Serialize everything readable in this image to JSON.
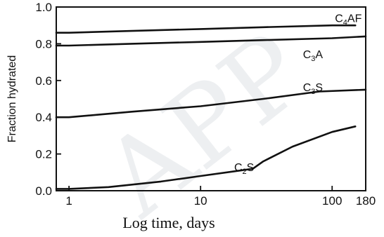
{
  "chart_data": {
    "type": "line",
    "xlabel": "Log time, days",
    "ylabel": "Fraction hydrated",
    "xscale": "log",
    "xlim": [
      0.8,
      180
    ],
    "ylim": [
      0.0,
      1.0
    ],
    "x_ticks": [
      {
        "value": 1,
        "label": "1"
      },
      {
        "value": 10,
        "label": "10"
      },
      {
        "value": 100,
        "label": "100"
      },
      {
        "value": 180,
        "label": "180"
      }
    ],
    "y_ticks": [
      {
        "value": 0.0,
        "label": "0.0"
      },
      {
        "value": 0.2,
        "label": "0.2"
      },
      {
        "value": 0.4,
        "label": "0.4"
      },
      {
        "value": 0.6,
        "label": "0.6"
      },
      {
        "value": 0.8,
        "label": "0.8"
      },
      {
        "value": 1.0,
        "label": "1.0"
      }
    ],
    "series": [
      {
        "name": "C4AF",
        "label_parts": [
          {
            "t": "C",
            "sub": false
          },
          {
            "t": "4",
            "sub": true
          },
          {
            "t": "AF",
            "sub": false
          }
        ],
        "label_at": [
          105,
          0.94
        ],
        "x": [
          0.8,
          1,
          3,
          10,
          30,
          100,
          150
        ],
        "y": [
          0.86,
          0.86,
          0.87,
          0.88,
          0.89,
          0.9,
          0.9
        ]
      },
      {
        "name": "C3A",
        "label_parts": [
          {
            "t": "C",
            "sub": false
          },
          {
            "t": "3",
            "sub": true
          },
          {
            "t": "A",
            "sub": false
          }
        ],
        "label_at": [
          60,
          0.745
        ],
        "x": [
          0.8,
          1,
          3,
          10,
          30,
          100,
          180
        ],
        "y": [
          0.79,
          0.79,
          0.8,
          0.81,
          0.82,
          0.83,
          0.84
        ]
      },
      {
        "name": "C3S",
        "label_parts": [
          {
            "t": "C",
            "sub": false
          },
          {
            "t": "3",
            "sub": true
          },
          {
            "t": "S",
            "sub": false
          }
        ],
        "label_at": [
          60,
          0.565
        ],
        "x": [
          0.8,
          1,
          3,
          10,
          30,
          80,
          180
        ],
        "y": [
          0.4,
          0.4,
          0.43,
          0.46,
          0.5,
          0.54,
          0.55
        ]
      },
      {
        "name": "C2S",
        "label_parts": [
          {
            "t": "C",
            "sub": false
          },
          {
            "t": "2",
            "sub": true
          },
          {
            "t": "S",
            "sub": false
          }
        ],
        "label_at": [
          18,
          0.13
        ],
        "x": [
          0.8,
          1,
          2,
          5,
          10,
          20,
          25,
          30,
          50,
          100,
          150
        ],
        "y": [
          0.01,
          0.01,
          0.02,
          0.05,
          0.08,
          0.11,
          0.12,
          0.16,
          0.24,
          0.32,
          0.35
        ]
      }
    ],
    "grid": false,
    "legend": "none"
  },
  "watermark": {
    "text": "APP",
    "color": "#d9dde2"
  }
}
